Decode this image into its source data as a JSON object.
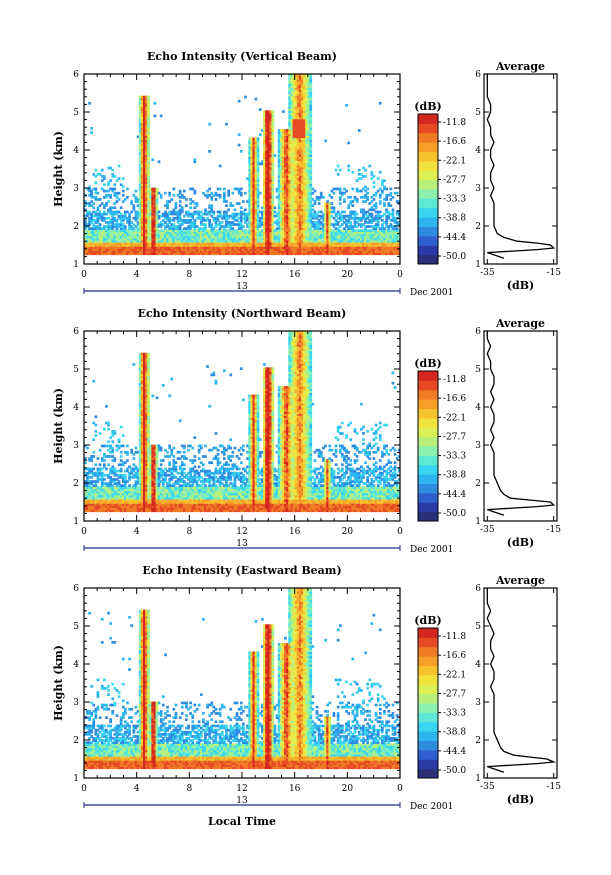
{
  "colors": {
    "scale": [
      "#2b2f7a",
      "#2a3ba7",
      "#2f5fd0",
      "#2f8be0",
      "#2fb5ee",
      "#3ad5f0",
      "#5ee8d6",
      "#8cf0b0",
      "#b7f07a",
      "#dcef55",
      "#f4e23c",
      "#f8c22f",
      "#f6a02a",
      "#f07a26",
      "#e64b25",
      "#d4271f"
    ],
    "line": "#000000",
    "axis_blue": "#1f2a8c"
  },
  "chart_data": [
    {
      "type": "heatmap",
      "title": "Echo Intensity (Vertical Beam)",
      "ylabel": "Height (km)",
      "xlabel": "",
      "x_ticks": [
        "0",
        "4",
        "8",
        "12",
        "16",
        "20",
        "0"
      ],
      "y_ticks": [
        "1",
        "2",
        "3",
        "4",
        "5",
        "6"
      ],
      "xlim": [
        0,
        24
      ],
      "ylim": [
        1,
        6
      ],
      "date_axis": {
        "center_label": "13",
        "right_label": "Dec 2001"
      },
      "colorbar": {
        "unit": "(dB)",
        "ticks": [
          "-11.8",
          "-16.6",
          "-22.1",
          "-27.7",
          "-33.3",
          "-38.8",
          "-44.4",
          "-50.0"
        ]
      },
      "profile": {
        "title": "Average",
        "xlabel": "(dB)",
        "x_ticks": [
          "-35",
          "-15"
        ],
        "y_ticks": [
          "1",
          "2",
          "3",
          "4",
          "5",
          "6"
        ],
        "xlim": [
          -36,
          -14
        ],
        "ylim": [
          1,
          6
        ],
        "x": [
          -30,
          -35,
          -20,
          -15,
          -16,
          -20,
          -26,
          -30,
          -32,
          -33,
          -33,
          -33,
          -33,
          -34,
          -33,
          -34,
          -34,
          -33,
          -34,
          -34,
          -33,
          -34,
          -34,
          -35,
          -34,
          -34,
          -35,
          -35,
          -35,
          -35,
          -35
        ],
        "y": [
          1.15,
          1.3,
          1.38,
          1.42,
          1.5,
          1.55,
          1.6,
          1.7,
          1.8,
          2.0,
          2.2,
          2.4,
          2.6,
          2.8,
          3.0,
          3.2,
          3.4,
          3.6,
          3.8,
          4.0,
          4.2,
          4.4,
          4.6,
          4.8,
          5.0,
          5.2,
          5.4,
          5.6,
          5.8,
          5.95,
          6.0
        ]
      }
    },
    {
      "type": "heatmap",
      "title": "Echo Intensity (Northward Beam)",
      "ylabel": "Height (km)",
      "xlabel": "",
      "x_ticks": [
        "0",
        "4",
        "8",
        "12",
        "16",
        "20",
        "0"
      ],
      "y_ticks": [
        "1",
        "2",
        "3",
        "4",
        "5",
        "6"
      ],
      "xlim": [
        0,
        24
      ],
      "ylim": [
        1,
        6
      ],
      "date_axis": {
        "center_label": "13",
        "right_label": "Dec 2001"
      },
      "colorbar": {
        "unit": "(dB)",
        "ticks": [
          "-11.8",
          "-16.6",
          "-22.1",
          "-27.7",
          "-33.3",
          "-38.8",
          "-44.4",
          "-50.0"
        ]
      },
      "profile": {
        "title": "Average",
        "xlabel": "(dB)",
        "x_ticks": [
          "-35",
          "-15"
        ],
        "y_ticks": [
          "1",
          "2",
          "3",
          "4",
          "5",
          "6"
        ],
        "xlim": [
          -36,
          -14
        ],
        "ylim": [
          1,
          6
        ],
        "x": [
          -30,
          -35,
          -20,
          -15,
          -16,
          -22,
          -28,
          -30,
          -31,
          -32,
          -33,
          -33,
          -33,
          -33,
          -34,
          -33,
          -34,
          -33,
          -33,
          -34,
          -33,
          -34,
          -33,
          -33,
          -34,
          -34,
          -35,
          -34,
          -35,
          -35,
          -35
        ],
        "y": [
          1.15,
          1.3,
          1.38,
          1.42,
          1.5,
          1.55,
          1.6,
          1.7,
          1.8,
          2.0,
          2.2,
          2.4,
          2.6,
          2.8,
          3.0,
          3.2,
          3.4,
          3.6,
          3.8,
          4.0,
          4.2,
          4.4,
          4.6,
          4.8,
          5.0,
          5.2,
          5.4,
          5.6,
          5.8,
          5.95,
          6.0
        ]
      }
    },
    {
      "type": "heatmap",
      "title": "Echo Intensity (Eastward Beam)",
      "ylabel": "Height (km)",
      "xlabel": "Local Time",
      "x_ticks": [
        "0",
        "4",
        "8",
        "12",
        "16",
        "20",
        "0"
      ],
      "y_ticks": [
        "1",
        "2",
        "3",
        "4",
        "5",
        "6"
      ],
      "xlim": [
        0,
        24
      ],
      "ylim": [
        1,
        6
      ],
      "date_axis": {
        "center_label": "13",
        "right_label": "Dec 2001"
      },
      "colorbar": {
        "unit": "(dB)",
        "ticks": [
          "-11.8",
          "-16.6",
          "-22.1",
          "-27.7",
          "-33.3",
          "-38.8",
          "-44.4",
          "-50.0"
        ]
      },
      "profile": {
        "title": "Average",
        "xlabel": "(dB)",
        "x_ticks": [
          "-35",
          "-15"
        ],
        "y_ticks": [
          "1",
          "2",
          "3",
          "4",
          "5",
          "6"
        ],
        "xlim": [
          -36,
          -14
        ],
        "ylim": [
          1,
          6
        ],
        "x": [
          -30,
          -35,
          -20,
          -15,
          -17,
          -22,
          -27,
          -30,
          -31,
          -32,
          -33,
          -33,
          -33,
          -33,
          -33,
          -33,
          -34,
          -33,
          -33,
          -34,
          -33,
          -34,
          -34,
          -33,
          -34,
          -35,
          -34,
          -35,
          -35,
          -35,
          -35
        ],
        "y": [
          1.15,
          1.3,
          1.38,
          1.42,
          1.5,
          1.55,
          1.6,
          1.7,
          1.8,
          2.0,
          2.2,
          2.4,
          2.6,
          2.8,
          3.0,
          3.2,
          3.4,
          3.6,
          3.8,
          4.0,
          4.2,
          4.4,
          4.6,
          4.8,
          5.0,
          5.2,
          5.4,
          5.6,
          5.8,
          5.95,
          6.0
        ]
      }
    }
  ]
}
